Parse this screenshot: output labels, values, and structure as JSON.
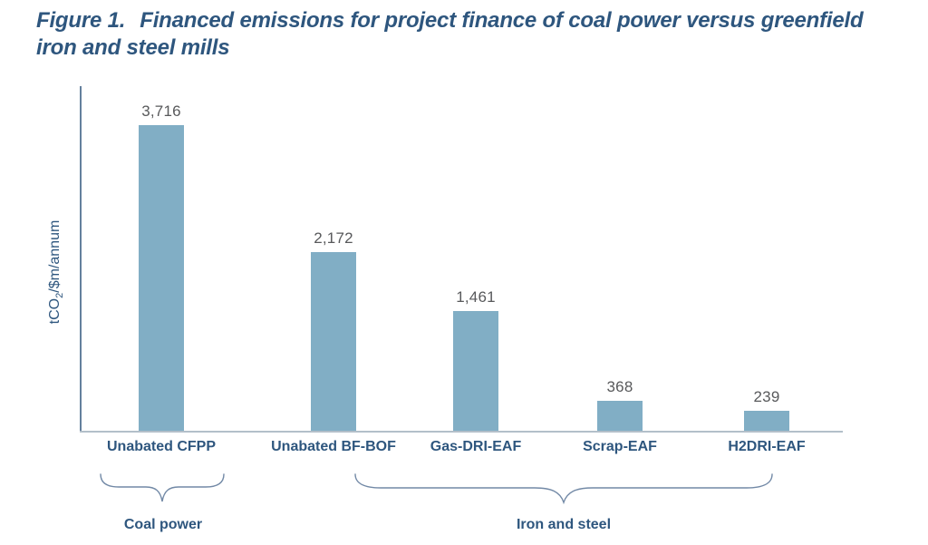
{
  "figure": {
    "label": "Figure 1.",
    "title_line1": "Financed emissions for project finance of coal power versus greenfield",
    "title_line2": "iron and steel mills"
  },
  "axes": {
    "ylabel_pre": "tCO",
    "ylabel_sub": "2",
    "ylabel_post": "/$m/annum"
  },
  "groups": {
    "group1_label": "Coal power",
    "group2_label": "Iron and steel"
  },
  "colors": {
    "bar_fill": "#81AEC5",
    "title_navy": "#2E567E",
    "value_gray": "#58595b",
    "y_axis_line": "#64809d",
    "x_axis_line": "#b3bfc9",
    "brace_stroke": "#7289a6"
  },
  "chart_data": {
    "type": "bar",
    "title": "Figure 1. Financed emissions for project finance of coal power versus greenfield iron and steel mills",
    "categories": [
      "Unabated CFPP",
      "Unabated BF-BOF",
      "Gas-DRI-EAF",
      "Scrap-EAF",
      "H2DRI-EAF"
    ],
    "values": [
      3716,
      2172,
      1461,
      368,
      239
    ],
    "value_labels": [
      "3,716",
      "2,172",
      "1,461",
      "368",
      "239"
    ],
    "xlabel": "",
    "ylabel": "tCO2/$m/annum",
    "ylim": [
      0,
      3716
    ],
    "grid": false,
    "legend": "none",
    "groups": [
      {
        "label": "Coal power",
        "categories": [
          "Unabated CFPP"
        ]
      },
      {
        "label": "Iron and steel",
        "categories": [
          "Unabated BF-BOF",
          "Gas-DRI-EAF",
          "Scrap-EAF",
          "H2DRI-EAF"
        ]
      }
    ]
  }
}
